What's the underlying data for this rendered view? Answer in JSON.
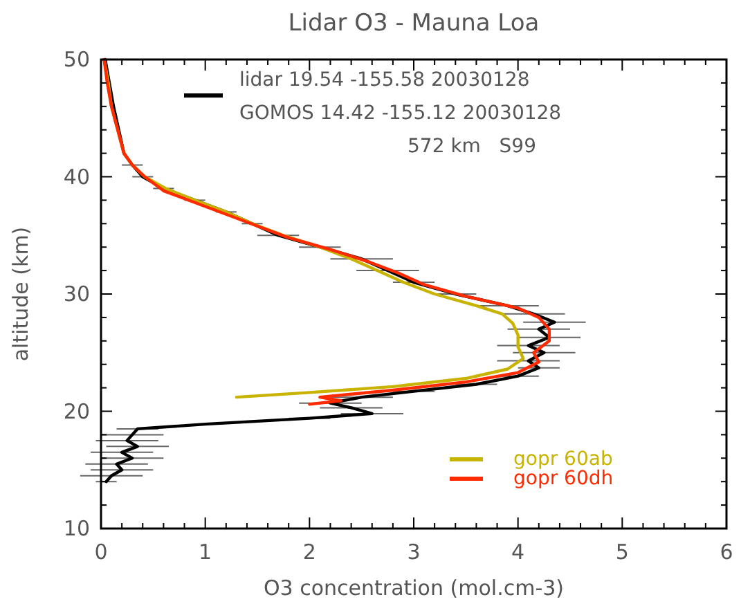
{
  "chart_data": {
    "type": "line",
    "title": "Lidar O3 - Mauna Loa",
    "xlabel": "O3 concentration (mol.cm-3)",
    "ylabel": "altitude (km)",
    "annotations": [
      "GOMOS 14.42 -155.12 20030128",
      "572 km   S99"
    ],
    "xlim": [
      0,
      6
    ],
    "ylim": [
      10,
      50
    ],
    "xticks": [
      0,
      {
        "value": 0.2,
        "label": null
      },
      {
        "value": 0.4,
        "label": null
      },
      {
        "value": 0.6,
        "label": null
      },
      {
        "value": 0.8,
        "label": null
      },
      1,
      {
        "value": 1.2,
        "label": null
      },
      {
        "value": 1.4,
        "label": null
      },
      {
        "value": 1.6,
        "label": null
      },
      {
        "value": 1.8,
        "label": null
      },
      2,
      {
        "value": 2.2,
        "label": null
      },
      {
        "value": 2.4,
        "label": null
      },
      {
        "value": 2.6,
        "label": null
      },
      {
        "value": 2.8,
        "label": null
      },
      3,
      {
        "value": 3.2,
        "label": null
      },
      {
        "value": 3.4,
        "label": null
      },
      {
        "value": 3.6,
        "label": null
      },
      {
        "value": 3.8,
        "label": null
      },
      4,
      {
        "value": 4.2,
        "label": null
      },
      {
        "value": 4.4,
        "label": null
      },
      {
        "value": 4.6,
        "label": null
      },
      {
        "value": 4.8,
        "label": null
      },
      5,
      {
        "value": 5.2,
        "label": null
      },
      {
        "value": 5.4,
        "label": null
      },
      {
        "value": 5.6,
        "label": null
      },
      {
        "value": 5.8,
        "label": null
      },
      6
    ],
    "yticks": [
      10,
      {
        "value": 12,
        "label": null
      },
      {
        "value": 14,
        "label": null
      },
      {
        "value": 16,
        "label": null
      },
      {
        "value": 18,
        "label": null
      },
      20,
      {
        "value": 22,
        "label": null
      },
      {
        "value": 24,
        "label": null
      },
      {
        "value": 26,
        "label": null
      },
      {
        "value": 28,
        "label": null
      },
      30,
      {
        "value": 32,
        "label": null
      },
      {
        "value": 34,
        "label": null
      },
      {
        "value": 36,
        "label": null
      },
      {
        "value": 38,
        "label": null
      },
      40,
      {
        "value": 42,
        "label": null
      },
      {
        "value": 44,
        "label": null
      },
      {
        "value": 46,
        "label": null
      },
      {
        "value": 48,
        "label": null
      },
      50
    ],
    "grid": false,
    "legend": "bottom right",
    "marker": "none",
    "line_style": "solid",
    "series": [
      {
        "name": "lidar 19.54 -155.58 20030128",
        "color": "#000000",
        "x": [
          0.05,
          0.1,
          0.2,
          0.15,
          0.3,
          0.2,
          0.35,
          0.25,
          0.3,
          0.35,
          1.0,
          2.0,
          2.6,
          2.4,
          2.2,
          2.5,
          3.0,
          3.6,
          4.0,
          4.2,
          4.1,
          4.25,
          4.1,
          4.3,
          4.2,
          4.35,
          4.15,
          3.9,
          3.4,
          3.0,
          2.75,
          2.5,
          2.1,
          1.7,
          1.45,
          1.2,
          0.9,
          0.6,
          0.4,
          0.3,
          0.22,
          0.17,
          0.12,
          0.08,
          0.04
        ],
        "values": [
          14,
          14.5,
          15,
          15.5,
          16,
          16.5,
          17,
          17.5,
          18,
          18.5,
          18.9,
          19.4,
          19.8,
          20.3,
          20.7,
          21.2,
          21.7,
          22.3,
          23,
          23.7,
          24.3,
          25,
          25.6,
          26.3,
          27,
          27.6,
          28.3,
          29,
          30,
          31,
          32,
          33,
          34,
          35,
          36,
          37,
          38,
          39,
          40,
          41,
          42,
          44,
          46,
          48,
          50
        ],
        "xerrors": [
          0.1,
          0.3,
          0.3,
          0.3,
          0.3,
          0.3,
          0.3,
          0.3,
          0.3,
          0.2,
          null,
          0.2,
          0.3,
          0.3,
          0.3,
          0.3,
          0.2,
          0.2,
          0.2,
          0.2,
          0.3,
          0.3,
          0.3,
          0.3,
          0.3,
          0.3,
          0.3,
          0.3,
          0.2,
          0.2,
          0.3,
          0.3,
          0.2,
          0.2,
          0.1,
          0.1,
          0.1,
          0.1,
          0.1,
          0.1,
          null,
          null,
          null,
          null,
          null
        ]
      },
      {
        "name": "gopr 60ab",
        "color": "#c8b400",
        "x": [
          1.3,
          2.0,
          2.8,
          3.5,
          3.9,
          4.05,
          4.0,
          4.0,
          3.95,
          3.85,
          3.6,
          3.2,
          2.9,
          2.65,
          2.4,
          2.1,
          1.75,
          1.45,
          1.2,
          0.9,
          0.62,
          0.42,
          0.3,
          0.22,
          0.16,
          0.1,
          0.07,
          0.03
        ],
        "values": [
          21.2,
          21.6,
          22.1,
          22.8,
          23.6,
          24.5,
          25.5,
          26.5,
          27.5,
          28.3,
          29,
          30,
          31,
          32,
          33,
          34,
          35,
          36,
          37,
          38,
          39,
          40,
          41,
          42,
          44,
          46,
          48,
          50
        ]
      },
      {
        "name": "gopr 60dh",
        "color": "#ff2a00",
        "x": [
          2.0,
          2.3,
          2.1,
          2.8,
          3.5,
          4.0,
          4.2,
          4.15,
          4.3,
          4.3,
          4.2,
          4.0,
          3.5,
          3.1,
          2.85,
          2.55,
          2.2,
          1.8,
          1.5,
          1.2,
          0.9,
          0.6,
          0.42,
          0.3,
          0.22,
          0.16,
          0.1,
          0.06,
          0.03
        ],
        "values": [
          20.6,
          20.9,
          21.2,
          21.8,
          22.5,
          23.3,
          24.2,
          25,
          26,
          27,
          28,
          28.8,
          29.8,
          30.8,
          31.8,
          32.8,
          33.8,
          34.8,
          35.8,
          36.8,
          37.8,
          38.8,
          40,
          41,
          42,
          44,
          46,
          48,
          50
        ]
      }
    ]
  }
}
